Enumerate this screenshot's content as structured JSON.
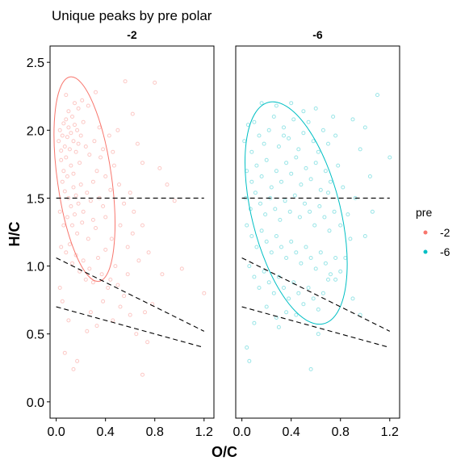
{
  "chart_data": {
    "type": "scatter",
    "title": "Unique peaks by pre polar",
    "xlabel": "O/C",
    "ylabel": "H/C",
    "xlim": [
      -0.05,
      1.28
    ],
    "ylim": [
      -0.12,
      2.62
    ],
    "x_ticks": [
      0.0,
      0.4,
      0.8,
      1.2
    ],
    "x_tick_labels": [
      "0.0",
      "0.4",
      "0.8",
      "1.2"
    ],
    "y_ticks": [
      0.0,
      0.5,
      1.0,
      1.5,
      2.0,
      2.5
    ],
    "y_tick_labels": [
      "0.0",
      "0.5",
      "1.0",
      "1.5",
      "2.0",
      "2.5"
    ],
    "grid": false,
    "legend": {
      "title": "pre",
      "position": "right",
      "entries": [
        {
          "label": "-2",
          "color": "#F8766D"
        },
        {
          "label": "-6",
          "color": "#00BFC4"
        }
      ]
    },
    "reference_lines": [
      {
        "x": [
          0.0,
          1.2
        ],
        "y": [
          1.5,
          1.5
        ],
        "style": "dashed"
      },
      {
        "x": [
          0.0,
          1.2
        ],
        "y": [
          1.06,
          0.52
        ],
        "style": "dashed"
      },
      {
        "x": [
          0.0,
          1.2
        ],
        "y": [
          0.7,
          0.4
        ],
        "style": "dashed"
      }
    ],
    "panels": [
      {
        "label": "-2",
        "color": "#F8766D",
        "ellipse": {
          "cx": 0.23,
          "cy": 1.64,
          "rx": 0.22,
          "ry": 0.76,
          "rotation": -8
        },
        "points": [
          [
            0.02,
            1.92
          ],
          [
            0.03,
            2.0
          ],
          [
            0.04,
            1.85
          ],
          [
            0.05,
            1.96
          ],
          [
            0.06,
            2.05
          ],
          [
            0.04,
            1.78
          ],
          [
            0.07,
            1.88
          ],
          [
            0.08,
            2.08
          ],
          [
            0.09,
            1.95
          ],
          [
            0.1,
            2.02
          ],
          [
            0.06,
            1.7
          ],
          [
            0.08,
            1.8
          ],
          [
            0.11,
            1.86
          ],
          [
            0.12,
            1.98
          ],
          [
            0.13,
            2.1
          ],
          [
            0.14,
            1.92
          ],
          [
            0.15,
            2.04
          ],
          [
            0.16,
            1.84
          ],
          [
            0.17,
            2.0
          ],
          [
            0.18,
            1.9
          ],
          [
            0.05,
            1.62
          ],
          [
            0.09,
            1.66
          ],
          [
            0.12,
            1.74
          ],
          [
            0.14,
            1.68
          ],
          [
            0.19,
            1.76
          ],
          [
            0.2,
            1.96
          ],
          [
            0.22,
            2.06
          ],
          [
            0.24,
            1.88
          ],
          [
            0.1,
            2.14
          ],
          [
            0.18,
            2.16
          ],
          [
            0.07,
            1.55
          ],
          [
            0.1,
            1.5
          ],
          [
            0.12,
            1.44
          ],
          [
            0.14,
            1.58
          ],
          [
            0.16,
            1.52
          ],
          [
            0.18,
            1.46
          ],
          [
            0.2,
            1.6
          ],
          [
            0.22,
            1.4
          ],
          [
            0.25,
            1.54
          ],
          [
            0.28,
            1.48
          ],
          [
            0.09,
            1.36
          ],
          [
            0.13,
            1.3
          ],
          [
            0.15,
            1.38
          ],
          [
            0.17,
            1.24
          ],
          [
            0.21,
            1.32
          ],
          [
            0.26,
            1.2
          ],
          [
            0.3,
            1.34
          ],
          [
            0.32,
            1.28
          ],
          [
            0.35,
            1.5
          ],
          [
            0.38,
            1.44
          ],
          [
            0.06,
            1.3
          ],
          [
            0.08,
            1.1
          ],
          [
            0.11,
            1.16
          ],
          [
            0.13,
            1.02
          ],
          [
            0.16,
            1.08
          ],
          [
            0.19,
            0.96
          ],
          [
            0.22,
            1.04
          ],
          [
            0.24,
            0.9
          ],
          [
            0.27,
            0.98
          ],
          [
            0.3,
            0.88
          ],
          [
            0.34,
            1.06
          ],
          [
            0.37,
            0.94
          ],
          [
            0.4,
            1.12
          ],
          [
            0.42,
            0.84
          ],
          [
            0.45,
            1.2
          ],
          [
            0.48,
            1.0
          ],
          [
            0.5,
            0.86
          ],
          [
            0.52,
            1.3
          ],
          [
            0.55,
            0.78
          ],
          [
            0.58,
            1.14
          ],
          [
            0.3,
            1.62
          ],
          [
            0.33,
            1.7
          ],
          [
            0.36,
            1.8
          ],
          [
            0.4,
            1.66
          ],
          [
            0.44,
            1.56
          ],
          [
            0.47,
            1.74
          ],
          [
            0.51,
            1.6
          ],
          [
            0.55,
            1.46
          ],
          [
            0.6,
            1.54
          ],
          [
            0.63,
            1.4
          ],
          [
            0.27,
            1.82
          ],
          [
            0.31,
            1.92
          ],
          [
            0.35,
            2.02
          ],
          [
            0.38,
            1.86
          ],
          [
            0.43,
            1.96
          ],
          [
            0.46,
            1.84
          ],
          [
            0.5,
            2.0
          ],
          [
            0.62,
            2.12
          ],
          [
            0.66,
            1.9
          ],
          [
            0.7,
            1.76
          ],
          [
            0.26,
            2.18
          ],
          [
            0.21,
            2.22
          ],
          [
            0.32,
            2.28
          ],
          [
            0.08,
            2.26
          ],
          [
            0.15,
            2.2
          ],
          [
            0.7,
            1.3
          ],
          [
            0.75,
            1.1
          ],
          [
            0.8,
            2.35
          ],
          [
            0.56,
            2.36
          ],
          [
            0.67,
            1.04
          ],
          [
            0.72,
            0.66
          ],
          [
            0.65,
            0.5
          ],
          [
            0.74,
            0.44
          ],
          [
            0.78,
            0.72
          ],
          [
            0.6,
            0.64
          ],
          [
            0.52,
            0.7
          ],
          [
            0.46,
            0.6
          ],
          [
            0.38,
            0.74
          ],
          [
            0.33,
            0.56
          ],
          [
            0.28,
            0.66
          ],
          [
            0.17,
            0.3
          ],
          [
            0.14,
            0.24
          ],
          [
            0.07,
            0.36
          ],
          [
            0.25,
            0.52
          ],
          [
            0.1,
            0.6
          ],
          [
            0.05,
            0.74
          ],
          [
            0.03,
            0.84
          ],
          [
            0.03,
            1.4
          ],
          [
            0.04,
            1.14
          ],
          [
            0.7,
            0.2
          ],
          [
            1.02,
            0.98
          ],
          [
            1.2,
            0.8
          ],
          [
            0.9,
            1.6
          ],
          [
            0.84,
            1.72
          ],
          [
            0.96,
            1.48
          ],
          [
            0.86,
            0.94
          ],
          [
            0.62,
            1.24
          ],
          [
            0.58,
            0.94
          ],
          [
            0.44,
            0.9
          ],
          [
            0.4,
            1.36
          ]
        ]
      },
      {
        "label": "-6",
        "color": "#00BFC4",
        "ellipse": {
          "cx": 0.44,
          "cy": 1.39,
          "rx": 0.36,
          "ry": 0.84,
          "rotation": -14
        },
        "points": [
          [
            0.02,
            1.92
          ],
          [
            0.05,
            2.04
          ],
          [
            0.08,
            1.84
          ],
          [
            0.1,
            2.06
          ],
          [
            0.14,
            1.96
          ],
          [
            0.18,
            1.9
          ],
          [
            0.22,
            2.0
          ],
          [
            0.26,
            2.1
          ],
          [
            0.3,
            1.88
          ],
          [
            0.34,
            2.02
          ],
          [
            0.38,
            1.94
          ],
          [
            0.42,
            2.08
          ],
          [
            0.46,
            1.86
          ],
          [
            0.5,
            1.98
          ],
          [
            0.54,
            2.06
          ],
          [
            0.58,
            1.92
          ],
          [
            0.62,
            1.84
          ],
          [
            0.66,
            2.0
          ],
          [
            0.7,
            1.9
          ],
          [
            0.76,
            1.96
          ],
          [
            0.04,
            1.7
          ],
          [
            0.08,
            1.62
          ],
          [
            0.12,
            1.74
          ],
          [
            0.16,
            1.66
          ],
          [
            0.2,
            1.78
          ],
          [
            0.24,
            1.58
          ],
          [
            0.28,
            1.7
          ],
          [
            0.32,
            1.62
          ],
          [
            0.36,
            1.76
          ],
          [
            0.4,
            1.68
          ],
          [
            0.44,
            1.8
          ],
          [
            0.48,
            1.6
          ],
          [
            0.52,
            1.72
          ],
          [
            0.56,
            1.64
          ],
          [
            0.6,
            1.76
          ],
          [
            0.64,
            1.56
          ],
          [
            0.68,
            1.7
          ],
          [
            0.72,
            1.62
          ],
          [
            0.78,
            1.74
          ],
          [
            0.82,
            1.58
          ],
          [
            0.03,
            1.5
          ],
          [
            0.07,
            1.42
          ],
          [
            0.11,
            1.54
          ],
          [
            0.15,
            1.46
          ],
          [
            0.19,
            1.38
          ],
          [
            0.23,
            1.5
          ],
          [
            0.27,
            1.42
          ],
          [
            0.31,
            1.34
          ],
          [
            0.35,
            1.48
          ],
          [
            0.39,
            1.4
          ],
          [
            0.43,
            1.52
          ],
          [
            0.47,
            1.36
          ],
          [
            0.51,
            1.46
          ],
          [
            0.55,
            1.4
          ],
          [
            0.59,
            1.3
          ],
          [
            0.63,
            1.44
          ],
          [
            0.67,
            1.36
          ],
          [
            0.71,
            1.26
          ],
          [
            0.75,
            1.4
          ],
          [
            0.8,
            1.3
          ],
          [
            0.04,
            1.3
          ],
          [
            0.08,
            1.22
          ],
          [
            0.12,
            1.14
          ],
          [
            0.16,
            1.26
          ],
          [
            0.2,
            1.18
          ],
          [
            0.24,
            1.1
          ],
          [
            0.28,
            1.22
          ],
          [
            0.32,
            1.14
          ],
          [
            0.36,
            1.06
          ],
          [
            0.4,
            1.18
          ],
          [
            0.44,
            1.1
          ],
          [
            0.48,
            1.02
          ],
          [
            0.52,
            1.14
          ],
          [
            0.56,
            1.06
          ],
          [
            0.6,
            0.98
          ],
          [
            0.64,
            1.1
          ],
          [
            0.68,
            1.02
          ],
          [
            0.72,
            0.94
          ],
          [
            0.76,
            1.06
          ],
          [
            0.8,
            0.96
          ],
          [
            0.06,
            1.0
          ],
          [
            0.1,
            0.92
          ],
          [
            0.14,
            0.84
          ],
          [
            0.18,
            0.96
          ],
          [
            0.22,
            0.88
          ],
          [
            0.26,
            0.8
          ],
          [
            0.3,
            0.92
          ],
          [
            0.34,
            0.84
          ],
          [
            0.38,
            0.76
          ],
          [
            0.42,
            0.88
          ],
          [
            0.46,
            0.8
          ],
          [
            0.5,
            0.72
          ],
          [
            0.54,
            0.84
          ],
          [
            0.58,
            0.76
          ],
          [
            0.62,
            0.68
          ],
          [
            0.66,
            0.8
          ],
          [
            0.7,
            0.9
          ],
          [
            0.2,
            0.7
          ],
          [
            0.28,
            0.62
          ],
          [
            0.36,
            0.66
          ],
          [
            0.16,
            2.2
          ],
          [
            0.28,
            2.18
          ],
          [
            0.4,
            2.2
          ],
          [
            0.5,
            2.14
          ],
          [
            0.6,
            2.16
          ],
          [
            0.74,
            2.1
          ],
          [
            0.9,
            2.08
          ],
          [
            0.96,
            1.86
          ],
          [
            1.0,
            2.02
          ],
          [
            1.2,
            1.8
          ],
          [
            1.1,
            2.26
          ],
          [
            1.04,
            1.66
          ],
          [
            0.92,
            1.5
          ],
          [
            0.86,
            1.38
          ],
          [
            1.06,
            1.4
          ],
          [
            0.88,
            1.2
          ],
          [
            0.84,
            1.06
          ],
          [
            0.62,
            0.5
          ],
          [
            0.56,
            0.24
          ],
          [
            0.04,
            0.4
          ],
          [
            0.06,
            0.3
          ],
          [
            0.1,
            0.58
          ],
          [
            0.3,
            0.55
          ],
          [
            0.44,
            0.64
          ],
          [
            0.76,
            0.9
          ],
          [
            0.9,
            0.76
          ],
          [
            0.96,
            0.64
          ],
          [
            1.0,
            1.22
          ],
          [
            0.7,
            1.54
          ],
          [
            0.34,
            1.96
          ]
        ]
      }
    ]
  }
}
